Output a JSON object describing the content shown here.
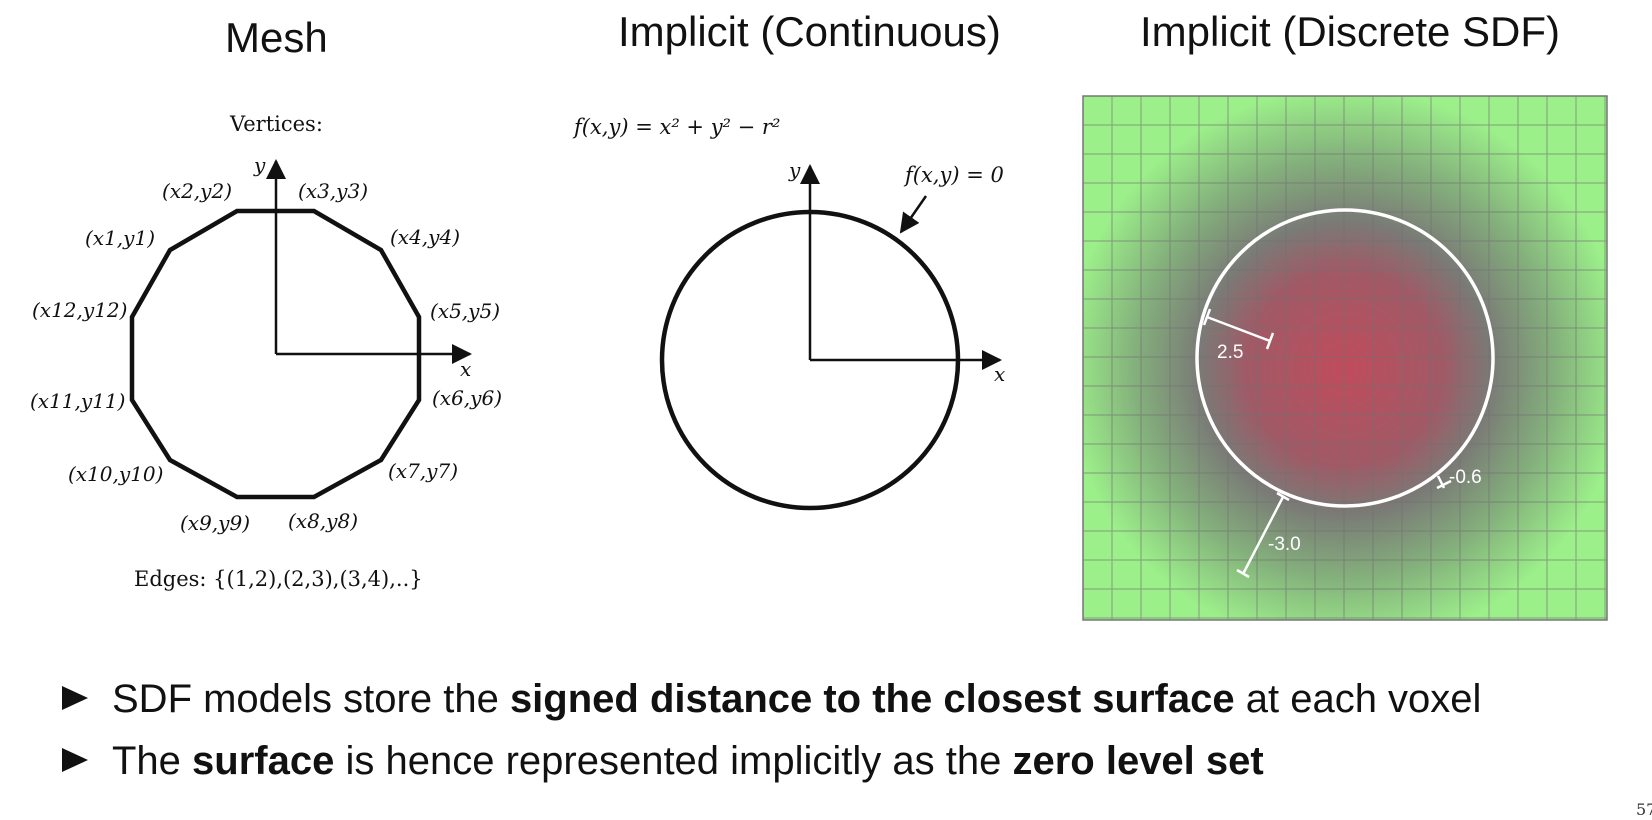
{
  "titles": {
    "mesh": "Mesh",
    "implicit_continuous": "Implicit (Continuous)",
    "implicit_discrete": "Implicit (Discrete SDF)"
  },
  "mesh": {
    "vertices_label": "Vertices:",
    "edges_label": "Edges: {(1,2),(2,3),(3,4),..}",
    "vertex_labels": [
      "(x1,y1)",
      "(x2,y2)",
      "(x3,y3)",
      "(x4,y4)",
      "(x5,y5)",
      "(x6,y6)",
      "(x7,y7)",
      "(x8,y8)",
      "(x9,y9)",
      "(x10,y10)",
      "(x11,y11)",
      "(x12,y12)"
    ],
    "axis_x": "x",
    "axis_y": "y"
  },
  "continuous": {
    "equation": "f(x,y) = x² + y² − r²",
    "level_set_label": "f(x,y) = 0",
    "axis_x": "x",
    "axis_y": "y"
  },
  "discrete": {
    "distances": [
      "2.5",
      "-0.6",
      "-3.0"
    ],
    "color_outside": "#9cf08a",
    "color_inside": "#c04c5c"
  },
  "bullets": [
    {
      "pre": "SDF models store the ",
      "bold": "signed distance to the closest surface",
      "post": " at each voxel"
    },
    {
      "pre": "The ",
      "bold": "surface",
      "mid": " is hence represented implicitly as the ",
      "bold2": "zero level set"
    }
  ],
  "page_number": "57"
}
